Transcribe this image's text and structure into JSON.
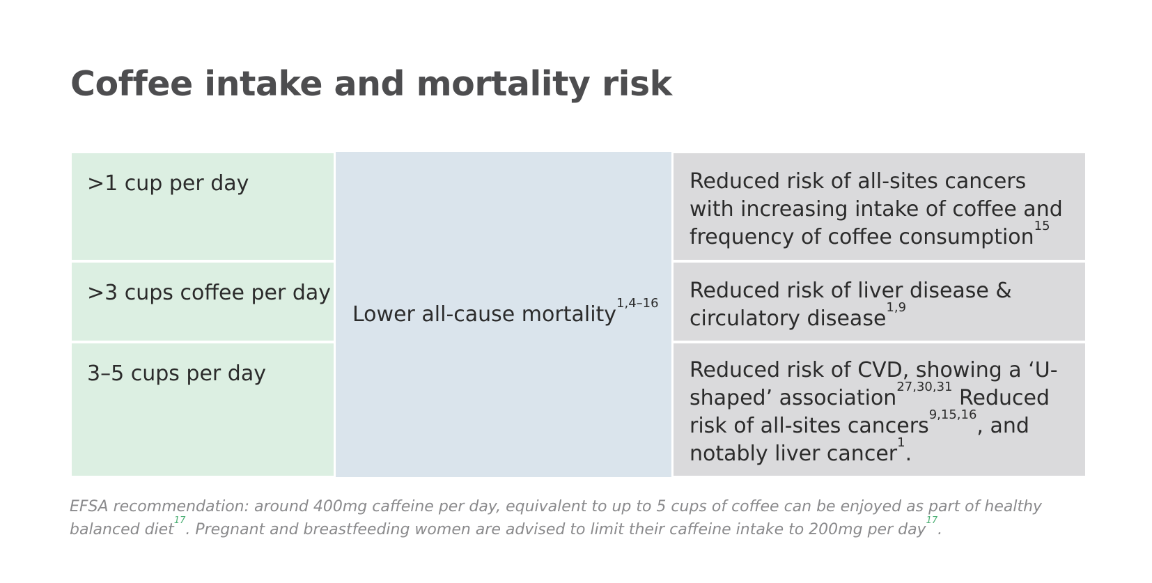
{
  "title": "Coffee intake and mortality risk",
  "table": {
    "outcome": {
      "text": "Lower all-cause mortality",
      "ref": "1,4–16"
    },
    "rows": [
      {
        "intake": ">1 cup per day",
        "effect": {
          "text": "Reduced risk of all-sites cancers with increasing intake of coffee and frequency of coffee consumption",
          "ref": "15"
        }
      },
      {
        "intake": ">3 cups coffee per day",
        "effect": {
          "text": "Reduced risk of liver disease & circulatory disease",
          "ref": "1,9"
        }
      },
      {
        "intake": "3–5 cups per day",
        "effect": {
          "part1": "Reduced risk of CVD, showing a ‘U-shaped’ association",
          "ref1": "27,30,31",
          "part2": " Reduced risk of all-sites cancers",
          "ref2": "9,15,16",
          "part3": ", and notably liver cancer",
          "ref3": "1",
          "part4": "."
        }
      }
    ]
  },
  "footnote": {
    "part1": "EFSA recommendation: around 400mg caffeine per day, equivalent to up to 5 cups of coffee can be enjoyed as part of healthy balanced diet",
    "ref1": "17",
    "part2": ". Pregnant and breastfeeding women are advised to limit their caffeine intake to 200mg per day",
    "ref2": "17",
    "part3": "."
  },
  "colors": {
    "title": "#4d4d4f",
    "intake_bg": "#dcefe2",
    "outcome_bg": "#dae4ec",
    "effect_bg": "#dadadc",
    "footnote_text": "#8a8a8c",
    "footnote_ref": "#4caf74"
  }
}
